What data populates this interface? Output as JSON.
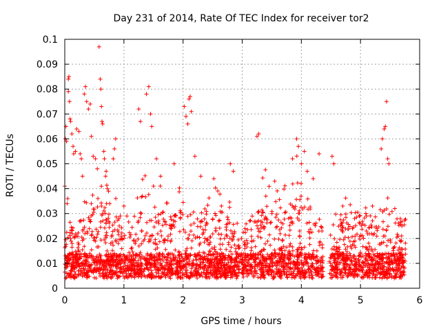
{
  "chart_data": {
    "type": "scatter",
    "title": "Day 231 of 2014, Rate Of TEC Index for receiver tor2",
    "xlabel": "GPS time / hours",
    "ylabel": "ROTI / TECUs",
    "xlim": [
      0,
      6
    ],
    "ylim": [
      0,
      0.1
    ],
    "x_ticks": [
      0,
      1,
      2,
      3,
      4,
      5,
      6
    ],
    "x_tick_labels": [
      "0",
      "1",
      "2",
      "3",
      "4",
      "5",
      "6"
    ],
    "y_ticks": [
      0,
      0.01,
      0.02,
      0.03,
      0.04,
      0.05,
      0.06,
      0.07,
      0.08,
      0.09,
      0.1
    ],
    "y_tick_labels": [
      "0",
      "0.01",
      "0.02",
      "0.03",
      "0.04",
      "0.05",
      "0.06",
      "0.07",
      "0.08",
      "0.09",
      "0.1"
    ],
    "grid": true,
    "marker": "+",
    "series_color": "#ff0000",
    "data_gap_hours": [
      4.37,
      4.47
    ],
    "series": [
      {
        "name": "ROTI",
        "points": [
          [
            0.0,
            0.041
          ],
          [
            0.01,
            0.06
          ],
          [
            0.02,
            0.065
          ],
          [
            0.03,
            0.059
          ],
          [
            0.04,
            0.034
          ],
          [
            0.05,
            0.036
          ],
          [
            0.06,
            0.084
          ],
          [
            0.07,
            0.085
          ],
          [
            0.06,
            0.079
          ],
          [
            0.08,
            0.075
          ],
          [
            0.09,
            0.068
          ],
          [
            0.1,
            0.067
          ],
          [
            0.12,
            0.062
          ],
          [
            0.14,
            0.057
          ],
          [
            0.15,
            0.054
          ],
          [
            0.18,
            0.055
          ],
          [
            0.2,
            0.064
          ],
          [
            0.24,
            0.063
          ],
          [
            0.26,
            0.054
          ],
          [
            0.28,
            0.052
          ],
          [
            0.3,
            0.045
          ],
          [
            0.33,
            0.078
          ],
          [
            0.35,
            0.081
          ],
          [
            0.37,
            0.075
          ],
          [
            0.4,
            0.072
          ],
          [
            0.43,
            0.074
          ],
          [
            0.45,
            0.061
          ],
          [
            0.48,
            0.053
          ],
          [
            0.52,
            0.052
          ],
          [
            0.55,
            0.048
          ],
          [
            0.58,
            0.097
          ],
          [
            0.6,
            0.084
          ],
          [
            0.61,
            0.08
          ],
          [
            0.62,
            0.073
          ],
          [
            0.63,
            0.067
          ],
          [
            0.64,
            0.066
          ],
          [
            0.66,
            0.055
          ],
          [
            0.67,
            0.052
          ],
          [
            0.69,
            0.045
          ],
          [
            0.7,
            0.047
          ],
          [
            0.72,
            0.04
          ],
          [
            0.74,
            0.039
          ],
          [
            0.76,
            0.034
          ],
          [
            0.62,
            0.033
          ],
          [
            0.82,
            0.052
          ],
          [
            0.84,
            0.056
          ],
          [
            0.86,
            0.06
          ],
          [
            1.0,
            0.033
          ],
          [
            1.05,
            0.029
          ],
          [
            1.25,
            0.072
          ],
          [
            1.28,
            0.067
          ],
          [
            1.38,
            0.078
          ],
          [
            1.42,
            0.081
          ],
          [
            1.45,
            0.07
          ],
          [
            1.47,
            0.065
          ],
          [
            1.5,
            0.041
          ],
          [
            1.55,
            0.052
          ],
          [
            1.62,
            0.045
          ],
          [
            1.85,
            0.05
          ],
          [
            2.02,
            0.073
          ],
          [
            2.05,
            0.069
          ],
          [
            2.08,
            0.066
          ],
          [
            2.1,
            0.076
          ],
          [
            2.12,
            0.077
          ],
          [
            2.14,
            0.071
          ],
          [
            2.2,
            0.053
          ],
          [
            2.3,
            0.045
          ],
          [
            2.52,
            0.044
          ],
          [
            2.8,
            0.05
          ],
          [
            2.85,
            0.047
          ],
          [
            3.25,
            0.061
          ],
          [
            3.28,
            0.062
          ],
          [
            3.4,
            0.037
          ],
          [
            3.55,
            0.043
          ],
          [
            3.85,
            0.052
          ],
          [
            3.92,
            0.06
          ],
          [
            3.95,
            0.057
          ],
          [
            4.0,
            0.05
          ],
          [
            4.05,
            0.055
          ],
          [
            4.1,
            0.047
          ],
          [
            4.2,
            0.044
          ],
          [
            4.3,
            0.054
          ],
          [
            4.52,
            0.053
          ],
          [
            4.55,
            0.05
          ],
          [
            4.7,
            0.033
          ],
          [
            4.9,
            0.028
          ],
          [
            5.1,
            0.023
          ],
          [
            5.35,
            0.056
          ],
          [
            5.37,
            0.06
          ],
          [
            5.4,
            0.064
          ],
          [
            5.42,
            0.065
          ],
          [
            5.44,
            0.075
          ],
          [
            5.46,
            0.052
          ],
          [
            5.48,
            0.05
          ],
          [
            5.58,
            0.032
          ],
          [
            5.7,
            0.025
          ]
        ]
      }
    ]
  }
}
